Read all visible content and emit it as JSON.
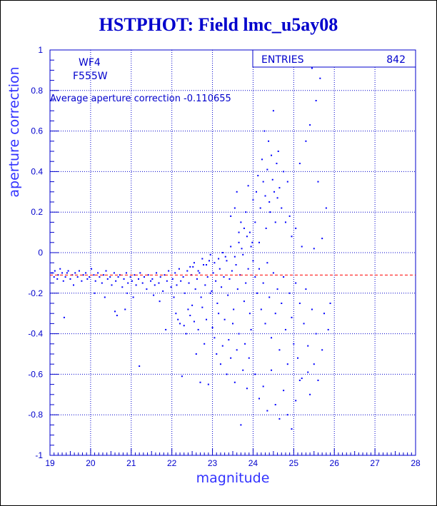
{
  "title": "HSTPHOT: Field lmc_u5ay08",
  "chart_data": {
    "type": "scatter",
    "title": "HSTPHOT: Field lmc_u5ay08",
    "xlabel": "magnitude",
    "ylabel": "aperture correction",
    "xlim": [
      19,
      28
    ],
    "ylim": [
      -1,
      1
    ],
    "xticks": [
      19,
      20,
      21,
      22,
      23,
      24,
      25,
      26,
      27,
      28
    ],
    "yticks": [
      -1,
      -0.8,
      -0.6,
      -0.4,
      -0.2,
      0,
      0.2,
      0.4,
      0.6,
      0.8,
      1
    ],
    "grid": true,
    "labels": {
      "chip": "WF4",
      "filter": "F555W",
      "average_note": "Average aperture correction -0.110655"
    },
    "stats": {
      "entries_label": "ENTRIES",
      "entries_value": "842"
    },
    "average_line": {
      "y": -0.110655,
      "color": "#ff0000",
      "style": "dashed"
    },
    "point_color": "#0000ff",
    "points": [
      [
        19.05,
        -0.1
      ],
      [
        19.1,
        -0.12
      ],
      [
        19.12,
        -0.09
      ],
      [
        19.18,
        -0.13
      ],
      [
        19.2,
        -0.11
      ],
      [
        19.25,
        -0.08
      ],
      [
        19.3,
        -0.1
      ],
      [
        19.33,
        -0.14
      ],
      [
        19.38,
        -0.12
      ],
      [
        19.42,
        -0.1
      ],
      [
        19.45,
        -0.09
      ],
      [
        19.5,
        -0.13
      ],
      [
        19.55,
        -0.11
      ],
      [
        19.58,
        -0.16
      ],
      [
        19.62,
        -0.1
      ],
      [
        19.68,
        -0.12
      ],
      [
        19.72,
        -0.09
      ],
      [
        19.78,
        -0.14
      ],
      [
        19.82,
        -0.11
      ],
      [
        19.88,
        -0.1
      ],
      [
        19.92,
        -0.13
      ],
      [
        19.97,
        -0.12
      ],
      [
        20.02,
        -0.08
      ],
      [
        20.08,
        -0.11
      ],
      [
        20.12,
        -0.14
      ],
      [
        20.18,
        -0.1
      ],
      [
        20.22,
        -0.12
      ],
      [
        20.28,
        -0.15
      ],
      [
        20.32,
        -0.11
      ],
      [
        20.38,
        -0.09
      ],
      [
        20.42,
        -0.13
      ],
      [
        20.48,
        -0.12
      ],
      [
        20.52,
        -0.16
      ],
      [
        20.58,
        -0.1
      ],
      [
        20.62,
        -0.14
      ],
      [
        20.68,
        -0.12
      ],
      [
        20.72,
        -0.11
      ],
      [
        20.78,
        -0.17
      ],
      [
        20.82,
        -0.13
      ],
      [
        20.88,
        -0.1
      ],
      [
        20.92,
        -0.15
      ],
      [
        20.98,
        -0.12
      ],
      [
        21.02,
        -0.14
      ],
      [
        21.08,
        -0.11
      ],
      [
        21.12,
        -0.16
      ],
      [
        21.18,
        -0.13
      ],
      [
        21.22,
        -0.1
      ],
      [
        21.28,
        -0.15
      ],
      [
        21.32,
        -0.12
      ],
      [
        21.38,
        -0.18
      ],
      [
        21.42,
        -0.11
      ],
      [
        21.48,
        -0.14
      ],
      [
        21.52,
        -0.13
      ],
      [
        21.58,
        -0.16
      ],
      [
        21.62,
        -0.1
      ],
      [
        21.68,
        -0.15
      ],
      [
        21.72,
        -0.12
      ],
      [
        21.78,
        -0.19
      ],
      [
        21.82,
        -0.11
      ],
      [
        21.88,
        -0.14
      ],
      [
        21.92,
        -0.09
      ],
      [
        21.98,
        -0.17
      ],
      [
        22.02,
        -0.13
      ],
      [
        22.08,
        -0.1
      ],
      [
        22.12,
        -0.16
      ],
      [
        22.18,
        -0.08
      ],
      [
        22.22,
        -0.14
      ],
      [
        22.28,
        -0.12
      ],
      [
        22.32,
        -0.2
      ],
      [
        22.38,
        -0.09
      ],
      [
        22.42,
        -0.15
      ],
      [
        22.48,
        -0.11
      ],
      [
        22.52,
        -0.07
      ],
      [
        22.58,
        -0.18
      ],
      [
        22.62,
        -0.13
      ],
      [
        22.68,
        -0.1
      ],
      [
        22.72,
        -0.22
      ],
      [
        22.78,
        -0.06
      ],
      [
        22.82,
        -0.16
      ],
      [
        22.88,
        -0.12
      ],
      [
        22.92,
        -0.04
      ],
      [
        22.98,
        -0.19
      ],
      [
        23.02,
        -0.1
      ],
      [
        23.08,
        -0.14
      ],
      [
        23.12,
        -0.25
      ],
      [
        23.18,
        -0.08
      ],
      [
        23.22,
        -0.17
      ],
      [
        23.28,
        -0.12
      ],
      [
        23.32,
        -0.02
      ],
      [
        23.38,
        -0.21
      ],
      [
        23.42,
        -0.13
      ],
      [
        23.48,
        -0.09
      ],
      [
        23.52,
        -0.28
      ],
      [
        23.58,
        -0.06
      ],
      [
        23.62,
        -0.18
      ],
      [
        23.68,
        -0.11
      ],
      [
        23.72,
        0.02
      ],
      [
        23.78,
        -0.24
      ],
      [
        23.82,
        -0.15
      ],
      [
        23.88,
        -0.08
      ],
      [
        23.92,
        -0.3
      ],
      [
        23.98,
        0.05
      ],
      [
        19.35,
        -0.32
      ],
      [
        20.1,
        -0.2
      ],
      [
        20.35,
        -0.22
      ],
      [
        20.6,
        -0.29
      ],
      [
        20.65,
        -0.31
      ],
      [
        20.85,
        -0.28
      ],
      [
        20.9,
        -0.2
      ],
      [
        21.05,
        -0.22
      ],
      [
        21.2,
        -0.56
      ],
      [
        21.55,
        -0.21
      ],
      [
        21.7,
        -0.24
      ],
      [
        21.85,
        -0.38
      ],
      [
        22.05,
        -0.22
      ],
      [
        22.1,
        -0.3
      ],
      [
        22.15,
        -0.33
      ],
      [
        22.2,
        -0.35
      ],
      [
        22.25,
        -0.61
      ],
      [
        22.3,
        -0.36
      ],
      [
        22.35,
        -0.4
      ],
      [
        22.4,
        -0.28
      ],
      [
        22.45,
        -0.31
      ],
      [
        22.5,
        -0.26
      ],
      [
        22.55,
        -0.34
      ],
      [
        22.6,
        -0.5
      ],
      [
        22.65,
        -0.38
      ],
      [
        22.7,
        -0.64
      ],
      [
        22.75,
        -0.27
      ],
      [
        22.8,
        -0.45
      ],
      [
        22.85,
        -0.33
      ],
      [
        22.9,
        -0.65
      ],
      [
        22.95,
        -0.2
      ],
      [
        23.0,
        -0.37
      ],
      [
        23.05,
        -0.42
      ],
      [
        23.1,
        -0.5
      ],
      [
        23.15,
        -0.3
      ],
      [
        23.2,
        -0.55
      ],
      [
        23.25,
        -0.46
      ],
      [
        23.3,
        -0.33
      ],
      [
        23.35,
        -0.6
      ],
      [
        23.4,
        -0.43
      ],
      [
        23.45,
        -0.52
      ],
      [
        23.5,
        -0.35
      ],
      [
        23.55,
        -0.64
      ],
      [
        23.6,
        -0.48
      ],
      [
        23.65,
        -0.4
      ],
      [
        23.7,
        -0.85
      ],
      [
        23.75,
        -0.58
      ],
      [
        23.8,
        -0.45
      ],
      [
        23.85,
        -0.67
      ],
      [
        23.9,
        -0.52
      ],
      [
        23.95,
        -0.38
      ],
      [
        22.45,
        -0.07
      ],
      [
        22.55,
        -0.05
      ],
      [
        22.65,
        -0.09
      ],
      [
        22.75,
        -0.03
      ],
      [
        22.85,
        -0.06
      ],
      [
        22.95,
        -0.01
      ],
      [
        23.05,
        -0.05
      ],
      [
        23.15,
        -0.03
      ],
      [
        23.25,
        0.0
      ],
      [
        23.35,
        -0.04
      ],
      [
        23.45,
        0.03
      ],
      [
        23.55,
        -0.02
      ],
      [
        23.65,
        0.05
      ],
      [
        23.75,
        -0.01
      ],
      [
        23.85,
        0.08
      ],
      [
        23.95,
        0.03
      ],
      [
        23.45,
        0.18
      ],
      [
        23.55,
        0.22
      ],
      [
        23.6,
        0.3
      ],
      [
        23.65,
        0.1
      ],
      [
        23.7,
        0.15
      ],
      [
        23.78,
        0.12
      ],
      [
        23.82,
        0.2
      ],
      [
        23.88,
        0.33
      ],
      [
        23.92,
        0.1
      ],
      [
        24.0,
        0.26
      ],
      [
        24.05,
        0.15
      ],
      [
        24.08,
        0.3
      ],
      [
        24.12,
        0.38
      ],
      [
        24.15,
        0.05
      ],
      [
        24.18,
        0.22
      ],
      [
        24.22,
        0.46
      ],
      [
        24.25,
        0.35
      ],
      [
        24.28,
        0.6
      ],
      [
        24.3,
        0.28
      ],
      [
        24.32,
        0.12
      ],
      [
        24.35,
        0.41
      ],
      [
        24.38,
        0.55
      ],
      [
        24.4,
        0.25
      ],
      [
        24.42,
        0.2
      ],
      [
        24.45,
        0.48
      ],
      [
        24.48,
        0.36
      ],
      [
        24.5,
        0.7
      ],
      [
        24.52,
        0.3
      ],
      [
        24.55,
        0.15
      ],
      [
        24.58,
        0.44
      ],
      [
        24.6,
        0.27
      ],
      [
        24.62,
        0.5
      ],
      [
        24.65,
        0.32
      ],
      [
        24.7,
        0.22
      ],
      [
        24.75,
        0.4
      ],
      [
        24.8,
        0.15
      ],
      [
        24.85,
        0.35
      ],
      [
        24.9,
        0.18
      ],
      [
        24.95,
        0.08
      ],
      [
        25.05,
        0.12
      ],
      [
        25.15,
        0.44
      ],
      [
        25.2,
        0.03
      ],
      [
        25.3,
        0.55
      ],
      [
        25.4,
        0.63
      ],
      [
        25.45,
        0.91
      ],
      [
        25.5,
        0.02
      ],
      [
        25.55,
        0.75
      ],
      [
        25.6,
        0.35
      ],
      [
        25.65,
        0.86
      ],
      [
        25.7,
        0.07
      ],
      [
        25.8,
        0.22
      ],
      [
        24.0,
        -0.04
      ],
      [
        24.05,
        -0.12
      ],
      [
        24.1,
        -0.2
      ],
      [
        24.15,
        -0.08
      ],
      [
        24.2,
        -0.28
      ],
      [
        24.25,
        -0.15
      ],
      [
        24.3,
        -0.35
      ],
      [
        24.35,
        -0.05
      ],
      [
        24.4,
        -0.22
      ],
      [
        24.45,
        -0.42
      ],
      [
        24.5,
        -0.1
      ],
      [
        24.55,
        -0.3
      ],
      [
        24.6,
        -0.18
      ],
      [
        24.65,
        -0.48
      ],
      [
        24.7,
        -0.25
      ],
      [
        24.75,
        -0.12
      ],
      [
        24.8,
        -0.38
      ],
      [
        24.85,
        -0.55
      ],
      [
        24.9,
        -0.2
      ],
      [
        24.95,
        -0.32
      ],
      [
        25.0,
        -0.45
      ],
      [
        25.05,
        -0.15
      ],
      [
        25.1,
        -0.52
      ],
      [
        25.15,
        -0.25
      ],
      [
        25.2,
        -0.62
      ],
      [
        25.25,
        -0.35
      ],
      [
        25.3,
        -0.18
      ],
      [
        25.35,
        -0.46
      ],
      [
        25.4,
        -0.7
      ],
      [
        25.45,
        -0.28
      ],
      [
        25.5,
        -0.55
      ],
      [
        25.55,
        -0.4
      ],
      [
        25.6,
        -0.63
      ],
      [
        25.7,
        -0.48
      ],
      [
        25.75,
        -0.3
      ],
      [
        25.85,
        -0.38
      ],
      [
        25.9,
        -0.25
      ],
      [
        24.05,
        -0.6
      ],
      [
        24.15,
        -0.72
      ],
      [
        24.25,
        -0.66
      ],
      [
        24.35,
        -0.78
      ],
      [
        24.45,
        -0.58
      ],
      [
        24.55,
        -0.75
      ],
      [
        24.65,
        -0.82
      ],
      [
        24.75,
        -0.68
      ],
      [
        24.85,
        -0.8
      ],
      [
        24.95,
        -0.87
      ],
      [
        25.05,
        -0.73
      ],
      [
        25.15,
        -0.63
      ],
      [
        25.35,
        -0.59
      ]
    ]
  }
}
